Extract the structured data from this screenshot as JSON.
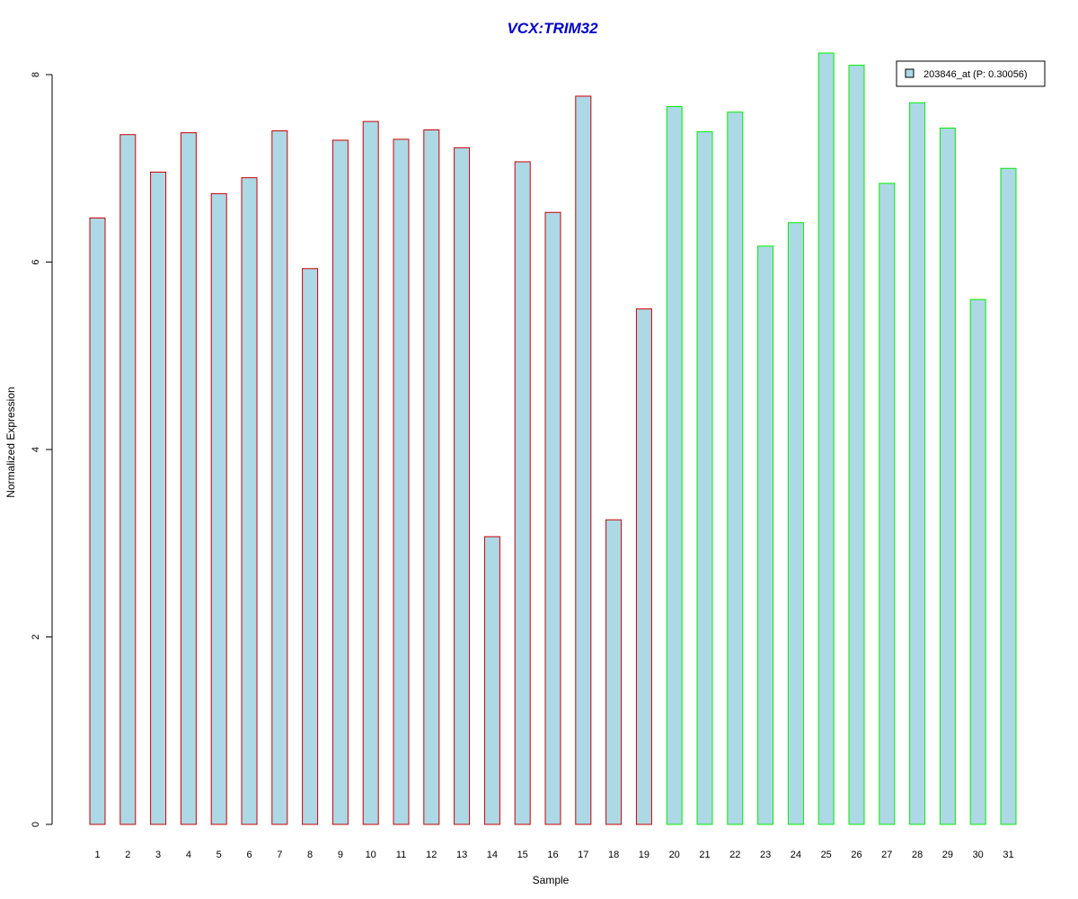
{
  "chart_data": {
    "type": "bar",
    "title": "VCX:TRIM32",
    "xlabel": "Sample",
    "ylabel": "Normalized Expression",
    "ylim": [
      0,
      8.2
    ],
    "yticks": [
      0,
      2,
      4,
      6,
      8
    ],
    "grid": false,
    "legend_position": "top-right",
    "categories": [
      "1",
      "2",
      "3",
      "4",
      "5",
      "6",
      "7",
      "8",
      "9",
      "10",
      "11",
      "12",
      "13",
      "14",
      "15",
      "16",
      "17",
      "18",
      "19",
      "20",
      "21",
      "22",
      "23",
      "24",
      "25",
      "26",
      "27",
      "28",
      "29",
      "30",
      "31"
    ],
    "series": [
      {
        "name": "203846_at (P: 0.30056)",
        "values": [
          6.47,
          7.36,
          6.96,
          7.38,
          6.73,
          6.9,
          7.4,
          5.93,
          7.3,
          7.5,
          7.31,
          7.41,
          7.22,
          3.07,
          7.07,
          6.53,
          7.77,
          3.25,
          5.5,
          7.66,
          7.39,
          7.6,
          6.17,
          6.42,
          8.23,
          8.1,
          6.84,
          7.7,
          7.43,
          5.6,
          7.0
        ],
        "groups": [
          "a",
          "a",
          "a",
          "a",
          "a",
          "a",
          "a",
          "a",
          "a",
          "a",
          "a",
          "a",
          "a",
          "a",
          "a",
          "a",
          "a",
          "a",
          "a",
          "b",
          "b",
          "b",
          "b",
          "b",
          "b",
          "b",
          "b",
          "b",
          "b",
          "b",
          "b"
        ]
      }
    ],
    "colors": {
      "fill": "#add8e6",
      "group_a_border": "#cc0000",
      "group_b_border": "#00ee00",
      "title": "#0000cc",
      "axis": "#000000"
    }
  }
}
